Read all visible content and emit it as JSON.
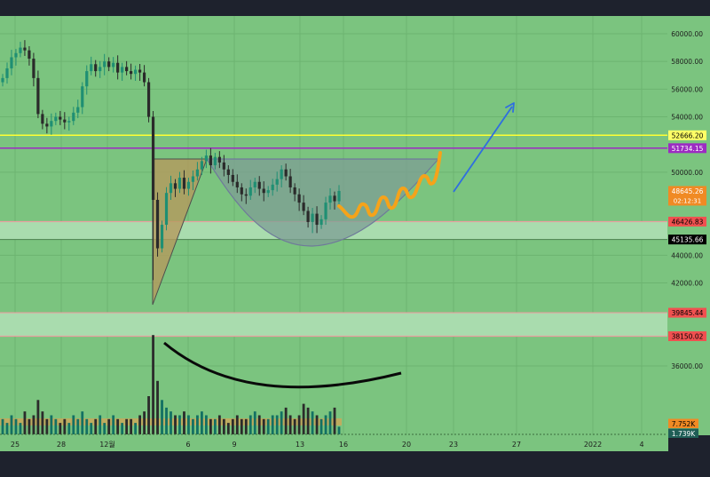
{
  "chart_data": {
    "type": "candlestick",
    "ylim": [
      34000,
      62000
    ],
    "grid": true,
    "colors": {
      "background": "#7bc47f",
      "frame": "#1e222d",
      "up": "#1f8f73",
      "down": "#2a2a2a",
      "yellow_line": "#ffff33",
      "purple_line": "#9c2bc2",
      "zone_fill": "#a9dcae",
      "zone_border": "#e8a0a0",
      "cup_fill": "#7e9e94",
      "triangle_fill": "#b59a5e",
      "orange_path": "#f5a31a",
      "blue_arrow": "#2f6ee0",
      "volume_band": "#c9a85a"
    },
    "y_tick_labels": [
      "60000.00",
      "58000.00",
      "56000.00",
      "54000.00",
      "50000.00",
      "44000.00",
      "42000.00",
      "36000.00"
    ],
    "x_tick_labels": [
      "25",
      "28",
      "12월",
      "6",
      "9",
      "13",
      "16",
      "20",
      "23",
      "27",
      "2022",
      "4"
    ],
    "price_tags": [
      {
        "id": "yellow-level",
        "label": "52666.20",
        "value": 52666.2,
        "bg": "#ffff66",
        "fg": "#000000"
      },
      {
        "id": "purple-level",
        "label": "51734.15",
        "value": 51734.15,
        "bg": "#9c2bc2",
        "fg": "#ffffff"
      },
      {
        "id": "last-price",
        "label": "48645.26",
        "sub": "02:12:31",
        "value": 48645.26,
        "bg": "#f08a24",
        "fg": "#ffffff"
      },
      {
        "id": "zone1-top",
        "label": "46426.83",
        "value": 46426.83,
        "bg": "#f05050",
        "fg": "#000000"
      },
      {
        "id": "zone1-bottom",
        "label": "45135.66",
        "value": 45135.66,
        "bg": "#000000",
        "fg": "#ffffff"
      },
      {
        "id": "zone2-top",
        "label": "39845.44",
        "value": 39845.44,
        "bg": "#f05050",
        "fg": "#000000"
      },
      {
        "id": "zone2-bottom",
        "label": "38150.02",
        "value": 38150.02,
        "bg": "#f05050",
        "fg": "#000000"
      }
    ],
    "volume_tags": [
      {
        "id": "volume-ma",
        "label": "7.752K",
        "bg": "#f08a24",
        "fg": "#000000"
      },
      {
        "id": "volume-last",
        "label": "1.739K",
        "bg": "#1f5e56",
        "fg": "#ffffff"
      }
    ],
    "candles_close": [
      56800,
      57500,
      58300,
      58600,
      59000,
      58800,
      58200,
      56800,
      54200,
      53500,
      53300,
      53700,
      54000,
      53800,
      53600,
      53700,
      54300,
      54700,
      56200,
      57300,
      57800,
      57300,
      57600,
      58000,
      57600,
      57900,
      57200,
      57600,
      57300,
      57100,
      57400,
      57200,
      56500,
      54000,
      48000,
      44500,
      46200,
      48500,
      49200,
      48800,
      49600,
      48800,
      49300,
      49700,
      50200,
      50800,
      51200,
      50500,
      51100,
      50700,
      50200,
      49800,
      49300,
      48900,
      48400,
      48300,
      48900,
      49300,
      48800,
      48500,
      48700,
      49100,
      49500,
      50200,
      49700,
      48900,
      48400,
      47800,
      47200,
      46400,
      47000,
      46200,
      46600,
      47800,
      48300,
      47900,
      48645
    ],
    "volumes": [
      4,
      3,
      5,
      4,
      3,
      6,
      4,
      5,
      9,
      6,
      4,
      5,
      4,
      3,
      4,
      3,
      5,
      4,
      6,
      4,
      3,
      4,
      5,
      3,
      4,
      5,
      4,
      3,
      4,
      4,
      3,
      5,
      6,
      10,
      26,
      14,
      9,
      7,
      6,
      5,
      5,
      6,
      5,
      4,
      5,
      6,
      5,
      4,
      4,
      5,
      4,
      3,
      4,
      5,
      4,
      4,
      5,
      6,
      5,
      4,
      4,
      5,
      5,
      6,
      7,
      5,
      4,
      5,
      8,
      7,
      6,
      5,
      4,
      5,
      6,
      7,
      2
    ]
  }
}
